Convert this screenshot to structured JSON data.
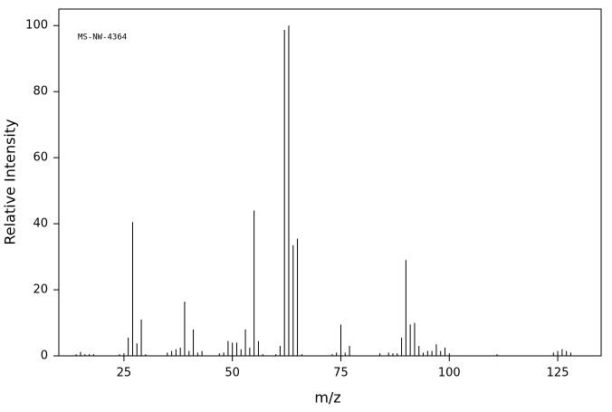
{
  "chart_data": {
    "type": "stem",
    "annotation": "MS-NW-4364",
    "x_label": "m/z",
    "y_label": "Relative Intensity",
    "x": [
      14,
      15,
      16,
      17,
      18,
      24,
      25,
      26,
      27,
      28,
      29,
      30,
      35,
      36,
      37,
      38,
      39,
      40,
      41,
      42,
      43,
      47,
      48,
      49,
      50,
      51,
      52,
      53,
      54,
      55,
      56,
      57,
      60,
      61,
      62,
      63,
      64,
      65,
      66,
      73,
      74,
      75,
      76,
      77,
      84,
      86,
      87,
      88,
      89,
      90,
      91,
      92,
      93,
      94,
      95,
      96,
      97,
      98,
      99,
      100,
      111,
      124,
      125,
      126,
      127,
      128
    ],
    "values": [
      0.5,
      1.2,
      0.5,
      0.5,
      0.5,
      0.5,
      0.8,
      5.5,
      40.5,
      3.8,
      11,
      0.5,
      1,
      1.5,
      2,
      2.5,
      16.4,
      1.5,
      8,
      1,
      1.5,
      0.8,
      1,
      4.5,
      4,
      4,
      2,
      8,
      2.5,
      44,
      4.5,
      0.5,
      0.5,
      3,
      98.7,
      100,
      33.5,
      35.5,
      0.5,
      0.5,
      1,
      9.5,
      1,
      3,
      0.8,
      1,
      0.8,
      0.8,
      5.5,
      29,
      9.5,
      10,
      3,
      1,
      1.5,
      1.5,
      3.5,
      1.5,
      2.5,
      0.8,
      0.5,
      1,
      1.5,
      2,
      1.5,
      1
    ],
    "color": "#000000",
    "xlim": [
      10,
      135
    ],
    "xticks": [
      25,
      50,
      75,
      100,
      125
    ],
    "ylim": [
      0,
      105
    ],
    "yticks": [
      0,
      20,
      40,
      60,
      80,
      100
    ]
  }
}
